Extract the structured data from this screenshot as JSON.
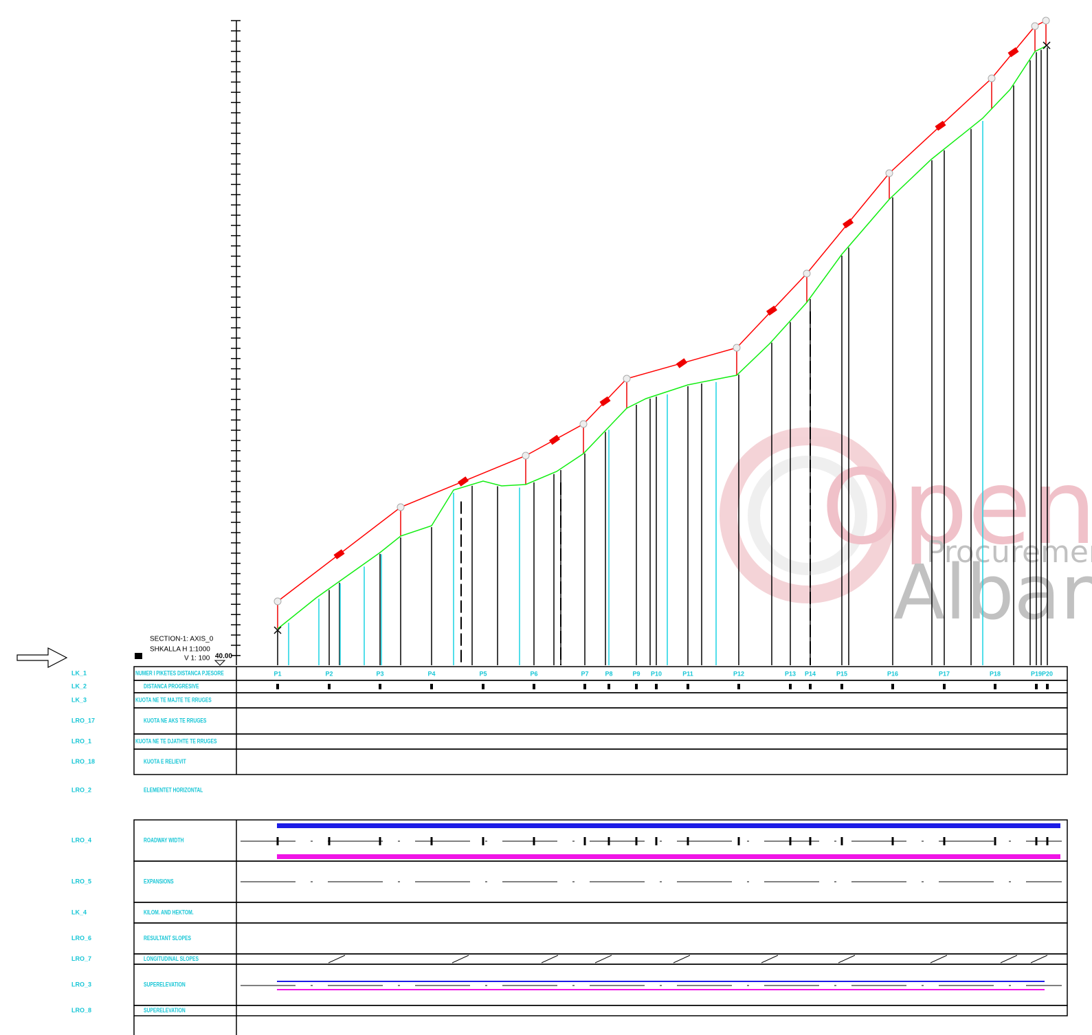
{
  "title_block": {
    "section": "SECTION-1: AXIS_0",
    "scale_h": "SHKALLA H 1:1000",
    "scale_v": "V 1:  100"
  },
  "datum": "40.00",
  "rows": [
    {
      "code": "LK_1",
      "label": "NUMER I PIKETES DISTANCA PJESORE"
    },
    {
      "code": "LK_2",
      "label": "DISTANCA PROGRESIVE"
    },
    {
      "code": "LK_3",
      "label": "KUOTA NE TE MAJTE TE RRUGES"
    },
    {
      "code": "LRO_17",
      "label": "KUOTA NE AKS TE RRUGES"
    },
    {
      "code": "LRO_1",
      "label": "KUOTA NE TE DJATHTE TE RRUGES"
    },
    {
      "code": "LRO_18",
      "label": "KUOTA E RELIEVIT"
    },
    {
      "code": "LRO_2",
      "label": "ELEMENTET HORIZONTAL"
    },
    {
      "code": "LRO_4",
      "label": "ROADWAY WIDTH"
    },
    {
      "code": "LRO_5",
      "label": "EXPANSIONS"
    },
    {
      "code": "LK_4",
      "label": "KILOM. AND HEKTOM."
    },
    {
      "code": "LRO_6",
      "label": "RESULTANT SLOPES"
    },
    {
      "code": "LRO_7",
      "label": "LONGITUDINAL SLOPES"
    },
    {
      "code": "LRO_3",
      "label": "SUPERELEVATION"
    },
    {
      "code": "LRO_8",
      "label": "SUPERELEVATION"
    }
  ],
  "pegs": [
    "P1",
    "P2",
    "P3",
    "P4",
    "P5",
    "P6",
    "P7",
    "P8",
    "P9",
    "P10",
    "P11",
    "P12",
    "P13",
    "P14",
    "P15",
    "P16",
    "P17",
    "P18",
    "P19",
    "P20"
  ],
  "watermark": {
    "line1": "Open",
    "line2": "Procurement",
    "line3": "Albania"
  }
}
